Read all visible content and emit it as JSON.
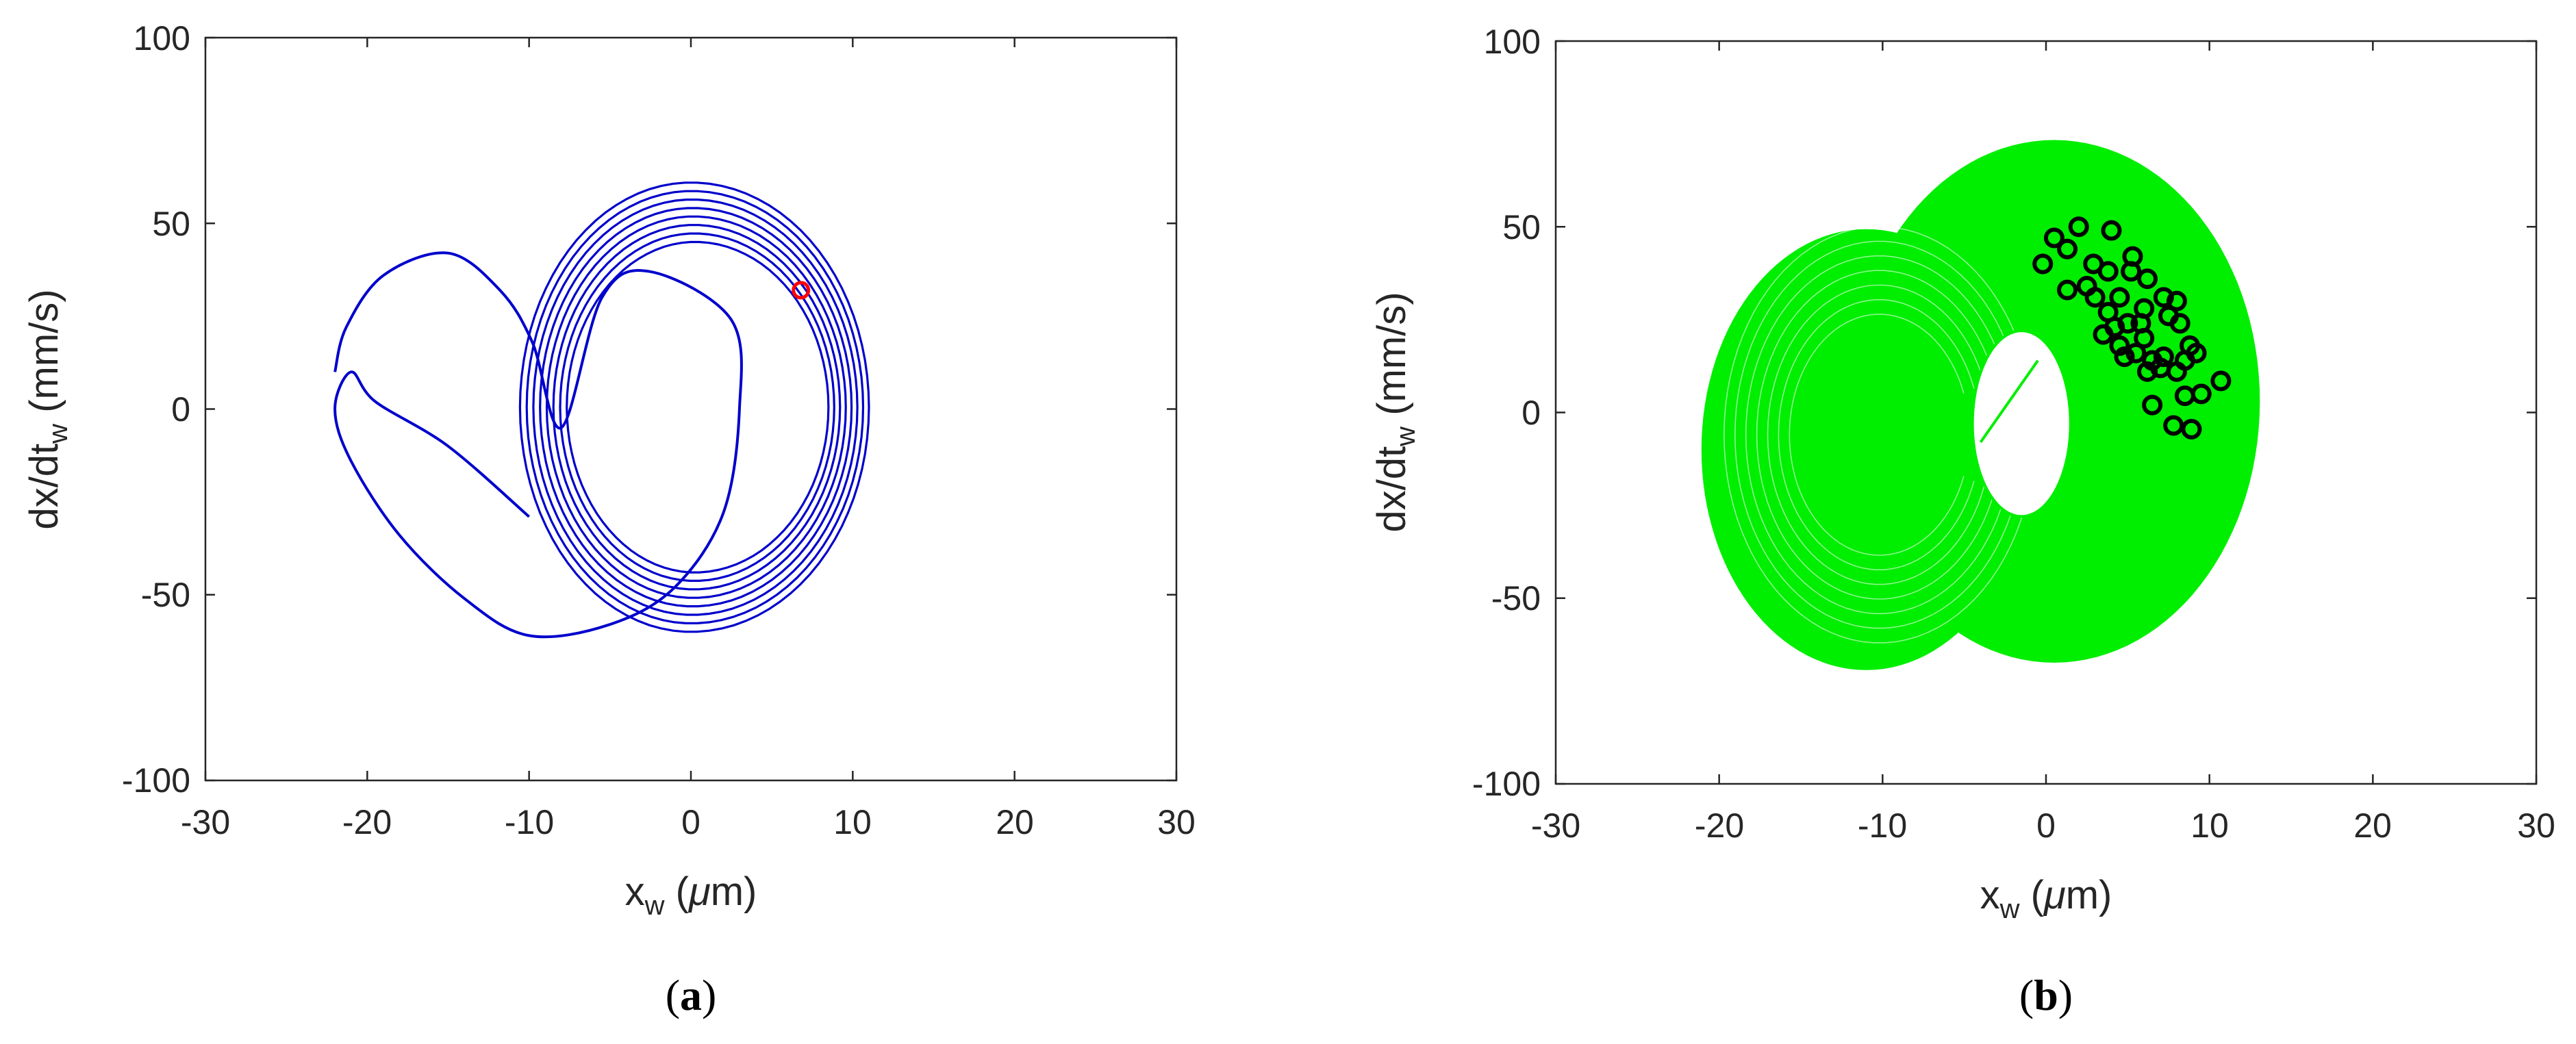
{
  "chart_data": [
    {
      "type": "line",
      "caption": {
        "open": "(",
        "letter": "a",
        "close": ")"
      },
      "xlabel": {
        "base": "x",
        "sub": "w",
        "unit_open": " (",
        "mu": "μ",
        "unit_rest": "m)"
      },
      "ylabel": {
        "base": "dx/dt",
        "sub": "w",
        "unit": "  (mm/s)"
      },
      "xlim": [
        -30,
        30
      ],
      "ylim": [
        -100,
        100
      ],
      "xticks": [
        "-30",
        "-20",
        "-10",
        "0",
        "10",
        "20",
        "30"
      ],
      "yticks": [
        "-100",
        "-50",
        "0",
        "50",
        "100"
      ],
      "grid": false,
      "series_color": "#0000cc",
      "marker_color": "#ff0000",
      "series": [
        {
          "kind": "transient-loop",
          "x_start": -10,
          "y_start": -29,
          "leftmost": [
            -22,
            0
          ],
          "top": [
            -15,
            42
          ],
          "bottom": [
            -10,
            -61
          ],
          "inner_top": [
            -2.5,
            37
          ],
          "inner_right": [
            3,
            0
          ],
          "join_point": [
            -8,
            -5
          ]
        },
        {
          "kind": "spiral",
          "center": [
            1.5,
            0
          ],
          "x_outer": [
            -11,
            11
          ],
          "y_outer": [
            -60,
            61
          ],
          "x_inner": [
            -8,
            8.5
          ],
          "y_inner": [
            -44,
            45
          ],
          "turns": 8
        }
      ],
      "markers": [
        [
          6.8,
          32
        ]
      ]
    },
    {
      "type": "scatter",
      "caption": {
        "open": "(",
        "letter": "b",
        "close": ")"
      },
      "xlabel": {
        "base": "x",
        "sub": "w",
        "unit_open": " (",
        "mu": "μ",
        "unit_rest": "m)"
      },
      "ylabel": {
        "base": "dx/dt",
        "sub": "w",
        "unit": "  (mm/s)"
      },
      "xlim": [
        -30,
        30
      ],
      "ylim": [
        -100,
        100
      ],
      "xticks": [
        "-30",
        "-20",
        "-10",
        "0",
        "10",
        "20",
        "30"
      ],
      "yticks": [
        "-100",
        "-50",
        "0",
        "50",
        "100"
      ],
      "grid": false,
      "series_color": "#00ee00",
      "marker_color": "#000000",
      "band": {
        "left_lobe": {
          "center": [
            -11,
            -10
          ],
          "x_range": [
            -22,
            -2
          ],
          "y_range": [
            -70,
            48
          ]
        },
        "right_lobe": {
          "center": [
            0.5,
            3
          ],
          "x_range": [
            -12,
            13
          ],
          "y_range": [
            -70,
            70
          ]
        },
        "hole": {
          "center": [
            -1.5,
            -3
          ],
          "x_range": [
            -5,
            1
          ],
          "y_range": [
            -28,
            22
          ]
        },
        "inner_stroke": [
          [
            -4,
            -8
          ],
          [
            -0.5,
            14
          ]
        ]
      },
      "markers": [
        [
          -0.2,
          40
        ],
        [
          0.5,
          47
        ],
        [
          1.3,
          44
        ],
        [
          2,
          50
        ],
        [
          1.3,
          33
        ],
        [
          2.5,
          34
        ],
        [
          2.9,
          40
        ],
        [
          3.8,
          38
        ],
        [
          4,
          49
        ],
        [
          3,
          31
        ],
        [
          3.8,
          27
        ],
        [
          4.5,
          31
        ],
        [
          5.2,
          38
        ],
        [
          5.3,
          42
        ],
        [
          6.2,
          36
        ],
        [
          7.2,
          31
        ],
        [
          8,
          30
        ],
        [
          7.5,
          26
        ],
        [
          6,
          28
        ],
        [
          5,
          24
        ],
        [
          4.5,
          18
        ],
        [
          3.5,
          21
        ],
        [
          4.8,
          15
        ],
        [
          5.5,
          16
        ],
        [
          6,
          20
        ],
        [
          6.5,
          14
        ],
        [
          7,
          12
        ],
        [
          6.2,
          11
        ],
        [
          8,
          11
        ],
        [
          8.8,
          18
        ],
        [
          9.2,
          16
        ],
        [
          8.5,
          14
        ],
        [
          10.7,
          8.5
        ],
        [
          9.5,
          5
        ],
        [
          8.5,
          4.5
        ],
        [
          6.5,
          2
        ],
        [
          7.8,
          -3.5
        ],
        [
          8.9,
          -4.5
        ],
        [
          7.2,
          15
        ],
        [
          4.2,
          23
        ],
        [
          5.8,
          24
        ],
        [
          8.2,
          24
        ]
      ]
    }
  ]
}
